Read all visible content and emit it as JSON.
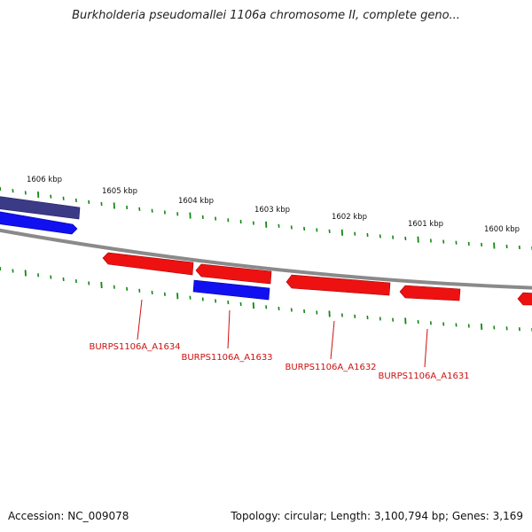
{
  "title": "Burkholderia pseudomallei 1106a chromosome II, complete geno...",
  "scale": {
    "labels": [
      "1606 kbp",
      "1605 kbp",
      "1604 kbp",
      "1603 kbp",
      "1602 kbp",
      "1601 kbp",
      "1600 kbp"
    ]
  },
  "genes": [
    {
      "label": "BURPS1106A_A1634"
    },
    {
      "label": "BURPS1106A_A1633"
    },
    {
      "label": "BURPS1106A_A1632"
    },
    {
      "label": "BURPS1106A_A1631"
    }
  ],
  "colors": {
    "forward": "#1010f0",
    "reverse": "#ee1111",
    "backbone": "#8a8a8a",
    "ticks": "#118811",
    "highlight": "#3b3a86",
    "label": "#cc1111"
  },
  "footer": {
    "accession": "Accession: NC_009078",
    "summary": "Topology: circular; Length: 3,100,794 bp; Genes: 3,169"
  }
}
